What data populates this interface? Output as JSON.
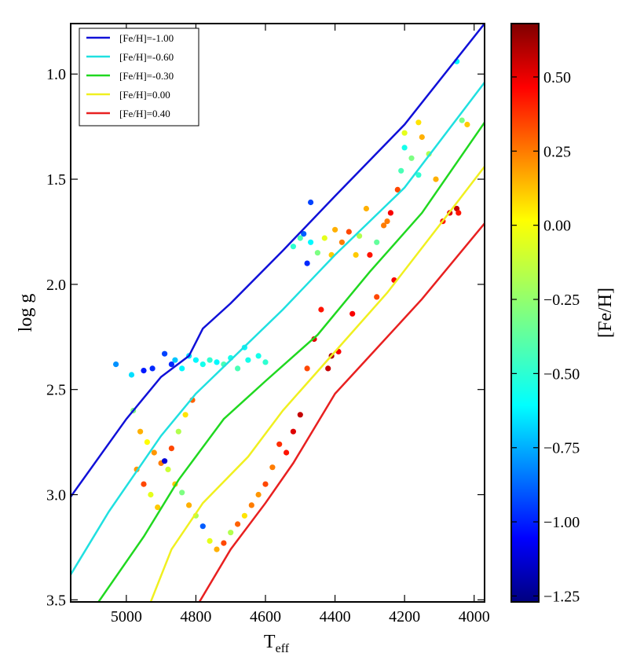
{
  "chart_data": {
    "type": "scatter",
    "xlabel": "T",
    "xlabel_sub": "eff",
    "ylabel": "log g",
    "xlim": [
      5160,
      3970
    ],
    "ylim": [
      3.51,
      0.76
    ],
    "x_ticks": [
      5000,
      4800,
      4600,
      4400,
      4200,
      4000
    ],
    "x_tick_labels": [
      "5000",
      "4800",
      "4600",
      "4400",
      "4200",
      "4000"
    ],
    "y_ticks": [
      1.0,
      1.5,
      2.0,
      2.5,
      3.0,
      3.5
    ],
    "y_tick_labels": [
      "1.0",
      "1.5",
      "2.0",
      "2.5",
      "3.0",
      "3.5"
    ],
    "colorbar": {
      "label": "[Fe/H]",
      "range": [
        -1.27,
        0.68
      ],
      "ticks": [
        0.5,
        0.25,
        0.0,
        -0.25,
        -0.5,
        -0.75,
        -1.0,
        -1.25
      ],
      "tick_labels": [
        "0.50",
        "0.25",
        "0.00",
        "−0.25",
        "−0.50",
        "−0.75",
        "−1.00",
        "−1.25"
      ]
    },
    "series": [
      {
        "name": "[Fe/H]=-1.00",
        "color": "#1010d8",
        "teff": [
          5160,
          5000,
          4900,
          4820,
          4780,
          4700,
          4550,
          4400,
          4200,
          3970
        ],
        "logg": [
          3.01,
          2.64,
          2.44,
          2.34,
          2.21,
          2.09,
          1.84,
          1.58,
          1.24,
          0.76
        ]
      },
      {
        "name": "[Fe/H]=-0.60",
        "color": "#20e0e0",
        "teff": [
          5160,
          5050,
          4900,
          4800,
          4700,
          4550,
          4400,
          4200,
          3970
        ],
        "logg": [
          3.38,
          3.08,
          2.72,
          2.52,
          2.36,
          2.12,
          1.86,
          1.54,
          1.04
        ]
      },
      {
        "name": "[Fe/H]=-0.30",
        "color": "#20d820",
        "teff": [
          5080,
          4950,
          4850,
          4720,
          4600,
          4450,
          4300,
          4150,
          3970
        ],
        "logg": [
          3.51,
          3.2,
          2.93,
          2.64,
          2.46,
          2.24,
          1.94,
          1.66,
          1.23
        ]
      },
      {
        "name": "[Fe/H]=0.00",
        "color": "#f0f020",
        "teff": [
          4930,
          4870,
          4780,
          4650,
          4550,
          4400,
          4250,
          4100,
          3970
        ],
        "logg": [
          3.51,
          3.26,
          3.04,
          2.82,
          2.6,
          2.32,
          2.04,
          1.72,
          1.44
        ]
      },
      {
        "name": "[Fe/H]=0.40",
        "color": "#e82020",
        "teff": [
          4790,
          4700,
          4600,
          4520,
          4400,
          4300,
          4150,
          3970
        ],
        "logg": [
          3.51,
          3.26,
          3.04,
          2.85,
          2.52,
          2.34,
          2.07,
          1.71
        ]
      }
    ],
    "scatter_points": [
      [
        5030,
        2.38,
        -0.75
      ],
      [
        4985,
        2.43,
        -0.6
      ],
      [
        4950,
        2.41,
        -0.98
      ],
      [
        4925,
        2.4,
        -0.95
      ],
      [
        4890,
        2.33,
        -0.9
      ],
      [
        4870,
        2.38,
        -0.95
      ],
      [
        4860,
        2.36,
        -0.65
      ],
      [
        4840,
        2.4,
        -0.55
      ],
      [
        4820,
        2.34,
        -0.6
      ],
      [
        4800,
        2.36,
        -0.55
      ],
      [
        4780,
        2.38,
        -0.5
      ],
      [
        4760,
        2.36,
        -0.45
      ],
      [
        4740,
        2.37,
        -0.55
      ],
      [
        4720,
        2.38,
        -0.4
      ],
      [
        4700,
        2.35,
        -0.5
      ],
      [
        4650,
        2.36,
        -0.5
      ],
      [
        4680,
        2.4,
        -0.4
      ],
      [
        4620,
        2.34,
        -0.5
      ],
      [
        4600,
        2.37,
        -0.45
      ],
      [
        4660,
        2.3,
        -0.55
      ],
      [
        4470,
        1.61,
        -0.9
      ],
      [
        4490,
        1.76,
        -0.85
      ],
      [
        4480,
        1.9,
        -0.95
      ],
      [
        4520,
        1.82,
        -0.45
      ],
      [
        4500,
        1.78,
        -0.4
      ],
      [
        4470,
        1.8,
        -0.55
      ],
      [
        4450,
        1.85,
        -0.3
      ],
      [
        4430,
        1.78,
        -0.1
      ],
      [
        4410,
        1.86,
        0.05
      ],
      [
        4400,
        1.74,
        0.1
      ],
      [
        4380,
        1.8,
        0.2
      ],
      [
        4360,
        1.75,
        0.3
      ],
      [
        4340,
        1.86,
        0.05
      ],
      [
        4330,
        1.77,
        -0.2
      ],
      [
        4300,
        1.86,
        0.4
      ],
      [
        4280,
        1.8,
        -0.35
      ],
      [
        4260,
        1.72,
        0.2
      ],
      [
        4240,
        1.66,
        0.45
      ],
      [
        4220,
        1.55,
        0.3
      ],
      [
        4210,
        1.46,
        -0.4
      ],
      [
        4200,
        1.35,
        -0.5
      ],
      [
        4180,
        1.4,
        -0.3
      ],
      [
        4160,
        1.48,
        -0.45
      ],
      [
        4150,
        1.3,
        0.1
      ],
      [
        4130,
        1.38,
        -0.2
      ],
      [
        4110,
        1.5,
        0.1
      ],
      [
        4090,
        1.7,
        0.4
      ],
      [
        4070,
        1.66,
        0.5
      ],
      [
        4050,
        1.64,
        0.55
      ],
      [
        4045,
        1.66,
        0.4
      ],
      [
        4020,
        1.24,
        0.05
      ],
      [
        4035,
        1.22,
        -0.3
      ],
      [
        4050,
        0.94,
        -0.55
      ],
      [
        4160,
        1.23,
        0.0
      ],
      [
        4200,
        1.28,
        -0.1
      ],
      [
        4310,
        1.64,
        0.1
      ],
      [
        4250,
        1.7,
        0.2
      ],
      [
        4230,
        1.98,
        0.45
      ],
      [
        4280,
        2.06,
        0.3
      ],
      [
        4350,
        2.14,
        0.45
      ],
      [
        4390,
        2.32,
        0.45
      ],
      [
        4410,
        2.34,
        0.6
      ],
      [
        4420,
        2.4,
        0.55
      ],
      [
        4440,
        2.12,
        0.4
      ],
      [
        4460,
        2.26,
        0.5
      ],
      [
        4480,
        2.4,
        0.3
      ],
      [
        4500,
        2.62,
        0.55
      ],
      [
        4520,
        2.7,
        0.5
      ],
      [
        4540,
        2.8,
        0.4
      ],
      [
        4560,
        2.76,
        0.35
      ],
      [
        4580,
        2.87,
        0.2
      ],
      [
        4600,
        2.95,
        0.3
      ],
      [
        4620,
        3.0,
        0.15
      ],
      [
        4640,
        3.05,
        0.2
      ],
      [
        4660,
        3.1,
        0.0
      ],
      [
        4680,
        3.14,
        0.25
      ],
      [
        4700,
        3.18,
        -0.2
      ],
      [
        4720,
        3.23,
        0.3
      ],
      [
        4740,
        3.26,
        0.1
      ],
      [
        4760,
        3.22,
        -0.1
      ],
      [
        4780,
        3.15,
        -0.85
      ],
      [
        4800,
        3.1,
        -0.2
      ],
      [
        4820,
        3.05,
        0.1
      ],
      [
        4840,
        2.99,
        -0.3
      ],
      [
        4860,
        2.95,
        0.05
      ],
      [
        4880,
        2.88,
        -0.15
      ],
      [
        4900,
        2.85,
        0.2
      ],
      [
        4920,
        2.8,
        0.15
      ],
      [
        4940,
        2.75,
        -0.05
      ],
      [
        4960,
        2.7,
        0.1
      ],
      [
        4980,
        2.6,
        -0.3
      ],
      [
        4970,
        2.88,
        0.15
      ],
      [
        4950,
        2.95,
        0.3
      ],
      [
        4930,
        3.0,
        -0.1
      ],
      [
        4910,
        3.06,
        0.05
      ],
      [
        4890,
        2.84,
        -1.1
      ],
      [
        4870,
        2.78,
        0.3
      ],
      [
        4850,
        2.7,
        -0.2
      ],
      [
        4830,
        2.62,
        0.0
      ],
      [
        4810,
        2.55,
        0.25
      ]
    ]
  }
}
